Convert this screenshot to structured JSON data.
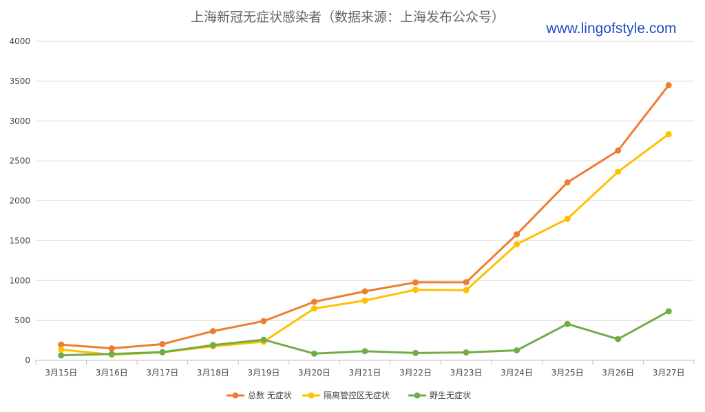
{
  "chart_data": {
    "type": "line",
    "title": "上海新冠无症状感染者（数据来源：上海发布公众号）",
    "watermark": "www.lingofstyle.com",
    "categories": [
      "3月15日",
      "3月16日",
      "3月17日",
      "3月18日",
      "3月19日",
      "3月20日",
      "3月21日",
      "3月22日",
      "3月23日",
      "3月24日",
      "3月25日",
      "3月26日",
      "3月27日"
    ],
    "ylim": [
      0,
      4000
    ],
    "yticks": [
      0,
      500,
      1000,
      1500,
      2000,
      2500,
      3000,
      3500,
      4000
    ],
    "grid": true,
    "legend_position": "bottom",
    "series": [
      {
        "name": "总数 无症状",
        "color": "#ed7d31",
        "values": [
          197,
          150,
          203,
          366,
          492,
          734,
          865,
          977,
          979,
          1580,
          2231,
          2631,
          3450
        ]
      },
      {
        "name": "隔离管控区无症状",
        "color": "#ffc000",
        "values": [
          135,
          70,
          100,
          175,
          234,
          650,
          750,
          885,
          880,
          1455,
          1775,
          2365,
          2835
        ]
      },
      {
        "name": "野生无症状",
        "color": "#70ad47",
        "values": [
          62,
          80,
          103,
          191,
          258,
          84,
          115,
          92,
          99,
          125,
          456,
          266,
          615
        ]
      }
    ]
  }
}
